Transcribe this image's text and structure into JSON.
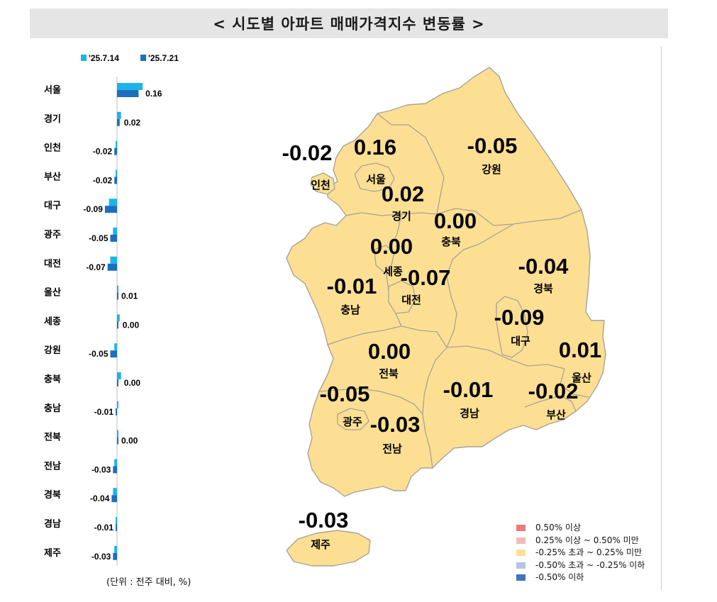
{
  "title": "< 시도별 아파트 매매가격지수 변동률 >",
  "unit_note": "(단위 : 전주 대비, %)",
  "colors": {
    "series_prev": "#1eb4ea",
    "series_curr": "#1c6fbf",
    "map_fill": "#fddf93",
    "map_stroke": "#a7a29a"
  },
  "chart_data": [
    {
      "type": "bar",
      "orientation": "horizontal",
      "categories": [
        "서울",
        "경기",
        "인천",
        "부산",
        "대구",
        "광주",
        "대전",
        "울산",
        "세종",
        "강원",
        "충북",
        "충남",
        "전북",
        "전남",
        "경북",
        "경남",
        "제주"
      ],
      "series": [
        {
          "name": "'25.7.14",
          "values": [
            0.19,
            0.03,
            -0.01,
            -0.01,
            -0.06,
            -0.03,
            -0.05,
            0.01,
            0.02,
            -0.02,
            0.03,
            0.0,
            0.01,
            -0.02,
            -0.03,
            -0.01,
            -0.02
          ]
        },
        {
          "name": "'25.7.21",
          "values": [
            0.16,
            0.02,
            -0.02,
            -0.02,
            -0.09,
            -0.05,
            -0.07,
            0.01,
            0.0,
            -0.05,
            0.0,
            -0.01,
            0.0,
            -0.03,
            -0.04,
            -0.01,
            -0.03
          ]
        }
      ],
      "data_labels": [
        "0.16",
        "0.02",
        "-0.02",
        "-0.02",
        "-0.09",
        "-0.05",
        "-0.07",
        "0.01",
        "0.00",
        "-0.05",
        "0.00",
        "-0.01",
        "0.00",
        "-0.03",
        "-0.04",
        "-0.01",
        "-0.03"
      ],
      "legend_position": "top-left"
    },
    {
      "type": "map",
      "regions": [
        {
          "name": "서울",
          "value": "0.16"
        },
        {
          "name": "인천",
          "value": "-0.02"
        },
        {
          "name": "경기",
          "value": "0.02"
        },
        {
          "name": "강원",
          "value": "-0.05"
        },
        {
          "name": "충북",
          "value": "0.00"
        },
        {
          "name": "세종",
          "value": "0.00"
        },
        {
          "name": "대전",
          "value": "-0.07"
        },
        {
          "name": "충남",
          "value": "-0.01"
        },
        {
          "name": "경북",
          "value": "-0.04"
        },
        {
          "name": "대구",
          "value": "-0.09"
        },
        {
          "name": "울산",
          "value": "0.01"
        },
        {
          "name": "전북",
          "value": "0.00"
        },
        {
          "name": "광주",
          "value": "-0.05"
        },
        {
          "name": "전남",
          "value": "-0.03"
        },
        {
          "name": "경남",
          "value": "-0.01"
        },
        {
          "name": "부산",
          "value": "-0.02"
        },
        {
          "name": "제주",
          "value": "-0.03"
        }
      ],
      "legend": [
        {
          "label": "0.50% 이상",
          "color": "#e97b7b"
        },
        {
          "label": "0.25% 이상 ~ 0.50% 미만",
          "color": "#f4b9b9"
        },
        {
          "label": "-0.25% 초과 ~ 0.25% 미만",
          "color": "#fddf93"
        },
        {
          "label": "-0.50% 초과 ~ -0.25% 이하",
          "color": "#b4c6e7"
        },
        {
          "label": "-0.50% 이하",
          "color": "#4472c4"
        }
      ],
      "legend_position": "bottom-right"
    }
  ]
}
